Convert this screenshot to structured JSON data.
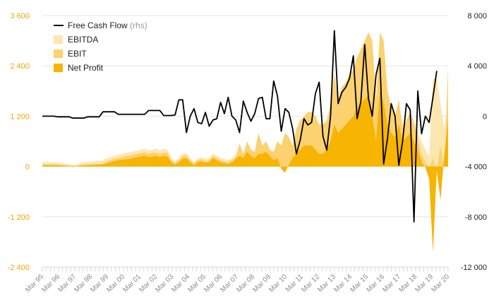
{
  "chart_data": {
    "type": "area",
    "title": "",
    "xlabel": "",
    "ylabel": "",
    "ylim": [
      -2400,
      3600
    ],
    "ylim_right": [
      -12000,
      8000
    ],
    "y_ticks": [
      -2400,
      -1200,
      0,
      1200,
      2400,
      3600
    ],
    "y_ticks_right": [
      -12000,
      -8000,
      -4000,
      0,
      4000,
      8000
    ],
    "y_tick_labels": [
      "-2 400",
      "-1 200",
      "0",
      "1 200",
      "2 400",
      "3 600"
    ],
    "y_tick_labels_right": [
      "-12 000",
      "-8 000",
      "-4 000",
      "0",
      "4 000",
      "8 000"
    ],
    "x_tick_labels": [
      "Mar 95",
      "Mar 96",
      "Mar 97",
      "Mar 98",
      "Mar 99",
      "Mar 00",
      "Mar 01",
      "Mar 02",
      "Mar 03",
      "Mar 04",
      "Mar 05",
      "Mar 06",
      "Mar 07",
      "Mar 08",
      "Mar 09",
      "Mar 10",
      "Mar 11",
      "Mar 12",
      "Mar 13",
      "Mar 14",
      "Mar 15",
      "Mar 16",
      "Mar 17",
      "Mar 18",
      "Mar 19",
      "Mar 20"
    ],
    "grid": "horizontal",
    "legend_position": "top-left",
    "colors": {
      "ebitda": "#fde7b0",
      "ebit": "#fcd170",
      "net_profit": "#f7b400",
      "fcf": "#000000",
      "left_axis": "#f0a500"
    },
    "legend": {
      "fcf_label": "Free Cash Flow",
      "fcf_suffix": "(rhs)",
      "ebitda_label": "EBITDA",
      "ebit_label": "EBIT",
      "net_profit_label": "Net Profit"
    },
    "series": [
      {
        "name": "EBITDA",
        "axis": "left",
        "key": "ebitda",
        "values": [
          100,
          100,
          100,
          100,
          90,
          80,
          60,
          60,
          40,
          50,
          90,
          100,
          110,
          120,
          130,
          140,
          140,
          200,
          220,
          250,
          280,
          300,
          330,
          340,
          360,
          380,
          400,
          420,
          390,
          400,
          420,
          380,
          420,
          400,
          200,
          120,
          200,
          300,
          320,
          200,
          100,
          200,
          220,
          180,
          200,
          300,
          250,
          200,
          180,
          150,
          200,
          280,
          350,
          300,
          400,
          350,
          300,
          350,
          400,
          380,
          300,
          250,
          400,
          400,
          500,
          450,
          400,
          500,
          600,
          650,
          700,
          700,
          650,
          550,
          550,
          600,
          900,
          700,
          650,
          500,
          450,
          550,
          600,
          700,
          800,
          850,
          900,
          1000,
          1100,
          1250,
          1400,
          1500,
          1400,
          1200,
          1500,
          1000,
          1100,
          1300,
          1100,
          800,
          600,
          400,
          250,
          2100,
          2100,
          1500,
          900,
          1500
        ]
      },
      {
        "name": "EBIT",
        "axis": "left",
        "key": "ebit",
        "values": [
          50,
          50,
          50,
          50,
          45,
          40,
          30,
          25,
          10,
          15,
          40,
          45,
          50,
          55,
          60,
          65,
          70,
          120,
          150,
          180,
          200,
          220,
          250,
          260,
          280,
          300,
          320,
          340,
          300,
          320,
          330,
          300,
          330,
          320,
          150,
          80,
          150,
          250,
          260,
          150,
          60,
          150,
          170,
          130,
          150,
          250,
          200,
          150,
          120,
          100,
          150,
          220,
          550,
          300,
          600,
          400,
          350,
          800,
          500,
          600,
          400,
          350,
          600,
          500,
          800,
          700,
          500,
          900,
          1100,
          1200,
          1300,
          1300,
          1200,
          1000,
          1000,
          1100,
          1500,
          2200,
          1600,
          1900,
          2000,
          2200,
          2300,
          2600,
          2800,
          3000,
          3200,
          3000,
          1600,
          3200,
          3000,
          1800,
          1400,
          1200,
          1600,
          900,
          1100,
          1300,
          1000,
          700,
          300,
          100,
          -50,
          200,
          -100,
          500,
          -50,
          2400
        ]
      },
      {
        "name": "Net Profit",
        "axis": "left",
        "key": "net_profit",
        "values": [
          30,
          30,
          30,
          30,
          25,
          20,
          10,
          5,
          -10,
          -5,
          20,
          25,
          30,
          35,
          40,
          45,
          50,
          80,
          100,
          130,
          150,
          160,
          170,
          180,
          200,
          220,
          240,
          260,
          220,
          240,
          250,
          220,
          250,
          240,
          100,
          50,
          100,
          180,
          200,
          100,
          30,
          100,
          120,
          90,
          100,
          200,
          150,
          100,
          80,
          60,
          100,
          180,
          250,
          200,
          350,
          250,
          200,
          300,
          300,
          350,
          250,
          150,
          200,
          -50,
          -150,
          50,
          200,
          300,
          400,
          500,
          500,
          500,
          400,
          300,
          300,
          400,
          600,
          1000,
          800,
          900,
          1000,
          1100,
          1200,
          1400,
          1500,
          1600,
          1700,
          1200,
          600,
          1800,
          1500,
          1000,
          800,
          700,
          1000,
          600,
          700,
          800,
          600,
          400,
          100,
          -20,
          -300,
          -2050,
          -100,
          -800,
          300,
          1100
        ]
      },
      {
        "name": "Free Cash Flow",
        "axis": "right",
        "key": "fcf",
        "values": [
          0,
          0,
          0,
          0,
          -50,
          -50,
          -50,
          -50,
          -150,
          -150,
          -150,
          -150,
          -50,
          -50,
          -50,
          -50,
          350,
          350,
          350,
          350,
          150,
          150,
          150,
          150,
          150,
          150,
          150,
          150,
          450,
          450,
          450,
          450,
          50,
          50,
          50,
          100,
          1300,
          1300,
          -1300,
          0,
          600,
          -500,
          -600,
          300,
          -800,
          -300,
          -200,
          1100,
          200,
          1500,
          0,
          -300,
          -1300,
          1200,
          300,
          -400,
          200,
          1400,
          1500,
          -200,
          -200,
          2800,
          1600,
          -1200,
          600,
          300,
          -1000,
          -3000,
          -1900,
          -200,
          -700,
          -500,
          1800,
          2700,
          -1600,
          -2700,
          0,
          6800,
          1000,
          1900,
          2300,
          3000,
          4800,
          -200,
          1200,
          5700,
          1400,
          0,
          3300,
          4600,
          -3800,
          -1800,
          1000,
          0,
          -3900,
          -2000,
          1000,
          500,
          -8400,
          2000,
          -1400,
          0,
          -500,
          1500,
          3600
        ]
      }
    ]
  }
}
